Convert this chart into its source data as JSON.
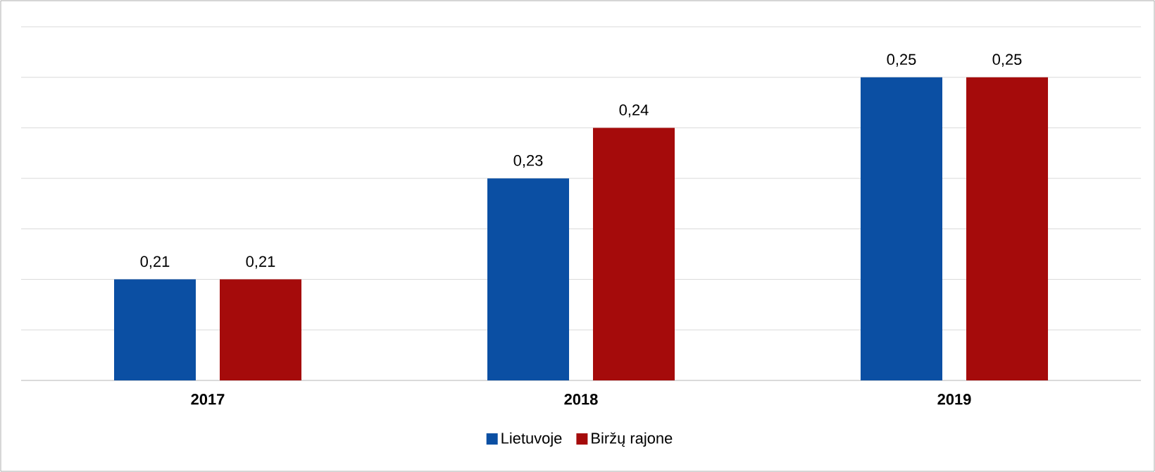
{
  "chart_data": {
    "type": "bar",
    "categories": [
      "2017",
      "2018",
      "2019"
    ],
    "series": [
      {
        "name": "Lietuvoje",
        "color": "#0b4fa3",
        "values": [
          0.21,
          0.23,
          0.25
        ],
        "value_labels": [
          "0,21",
          "0,23",
          "0,25"
        ]
      },
      {
        "name": "Biržų rajone",
        "color": "#a50b0b",
        "values": [
          0.21,
          0.24,
          0.25
        ],
        "value_labels": [
          "0,21",
          "0,24",
          "0,25"
        ]
      }
    ],
    "ylim": [
      0.19,
      0.26
    ],
    "yticks": [
      {
        "value": 0.19,
        "label": null
      },
      {
        "value": 0.2,
        "label": null
      },
      {
        "value": 0.21,
        "label": null
      },
      {
        "value": 0.22,
        "label": null
      },
      {
        "value": 0.23,
        "label": null
      },
      {
        "value": 0.24,
        "label": null
      },
      {
        "value": 0.25,
        "label": null
      },
      {
        "value": 0.26,
        "label": null
      }
    ],
    "tick_labels": "x",
    "grid": "y",
    "legend": "bottom"
  }
}
